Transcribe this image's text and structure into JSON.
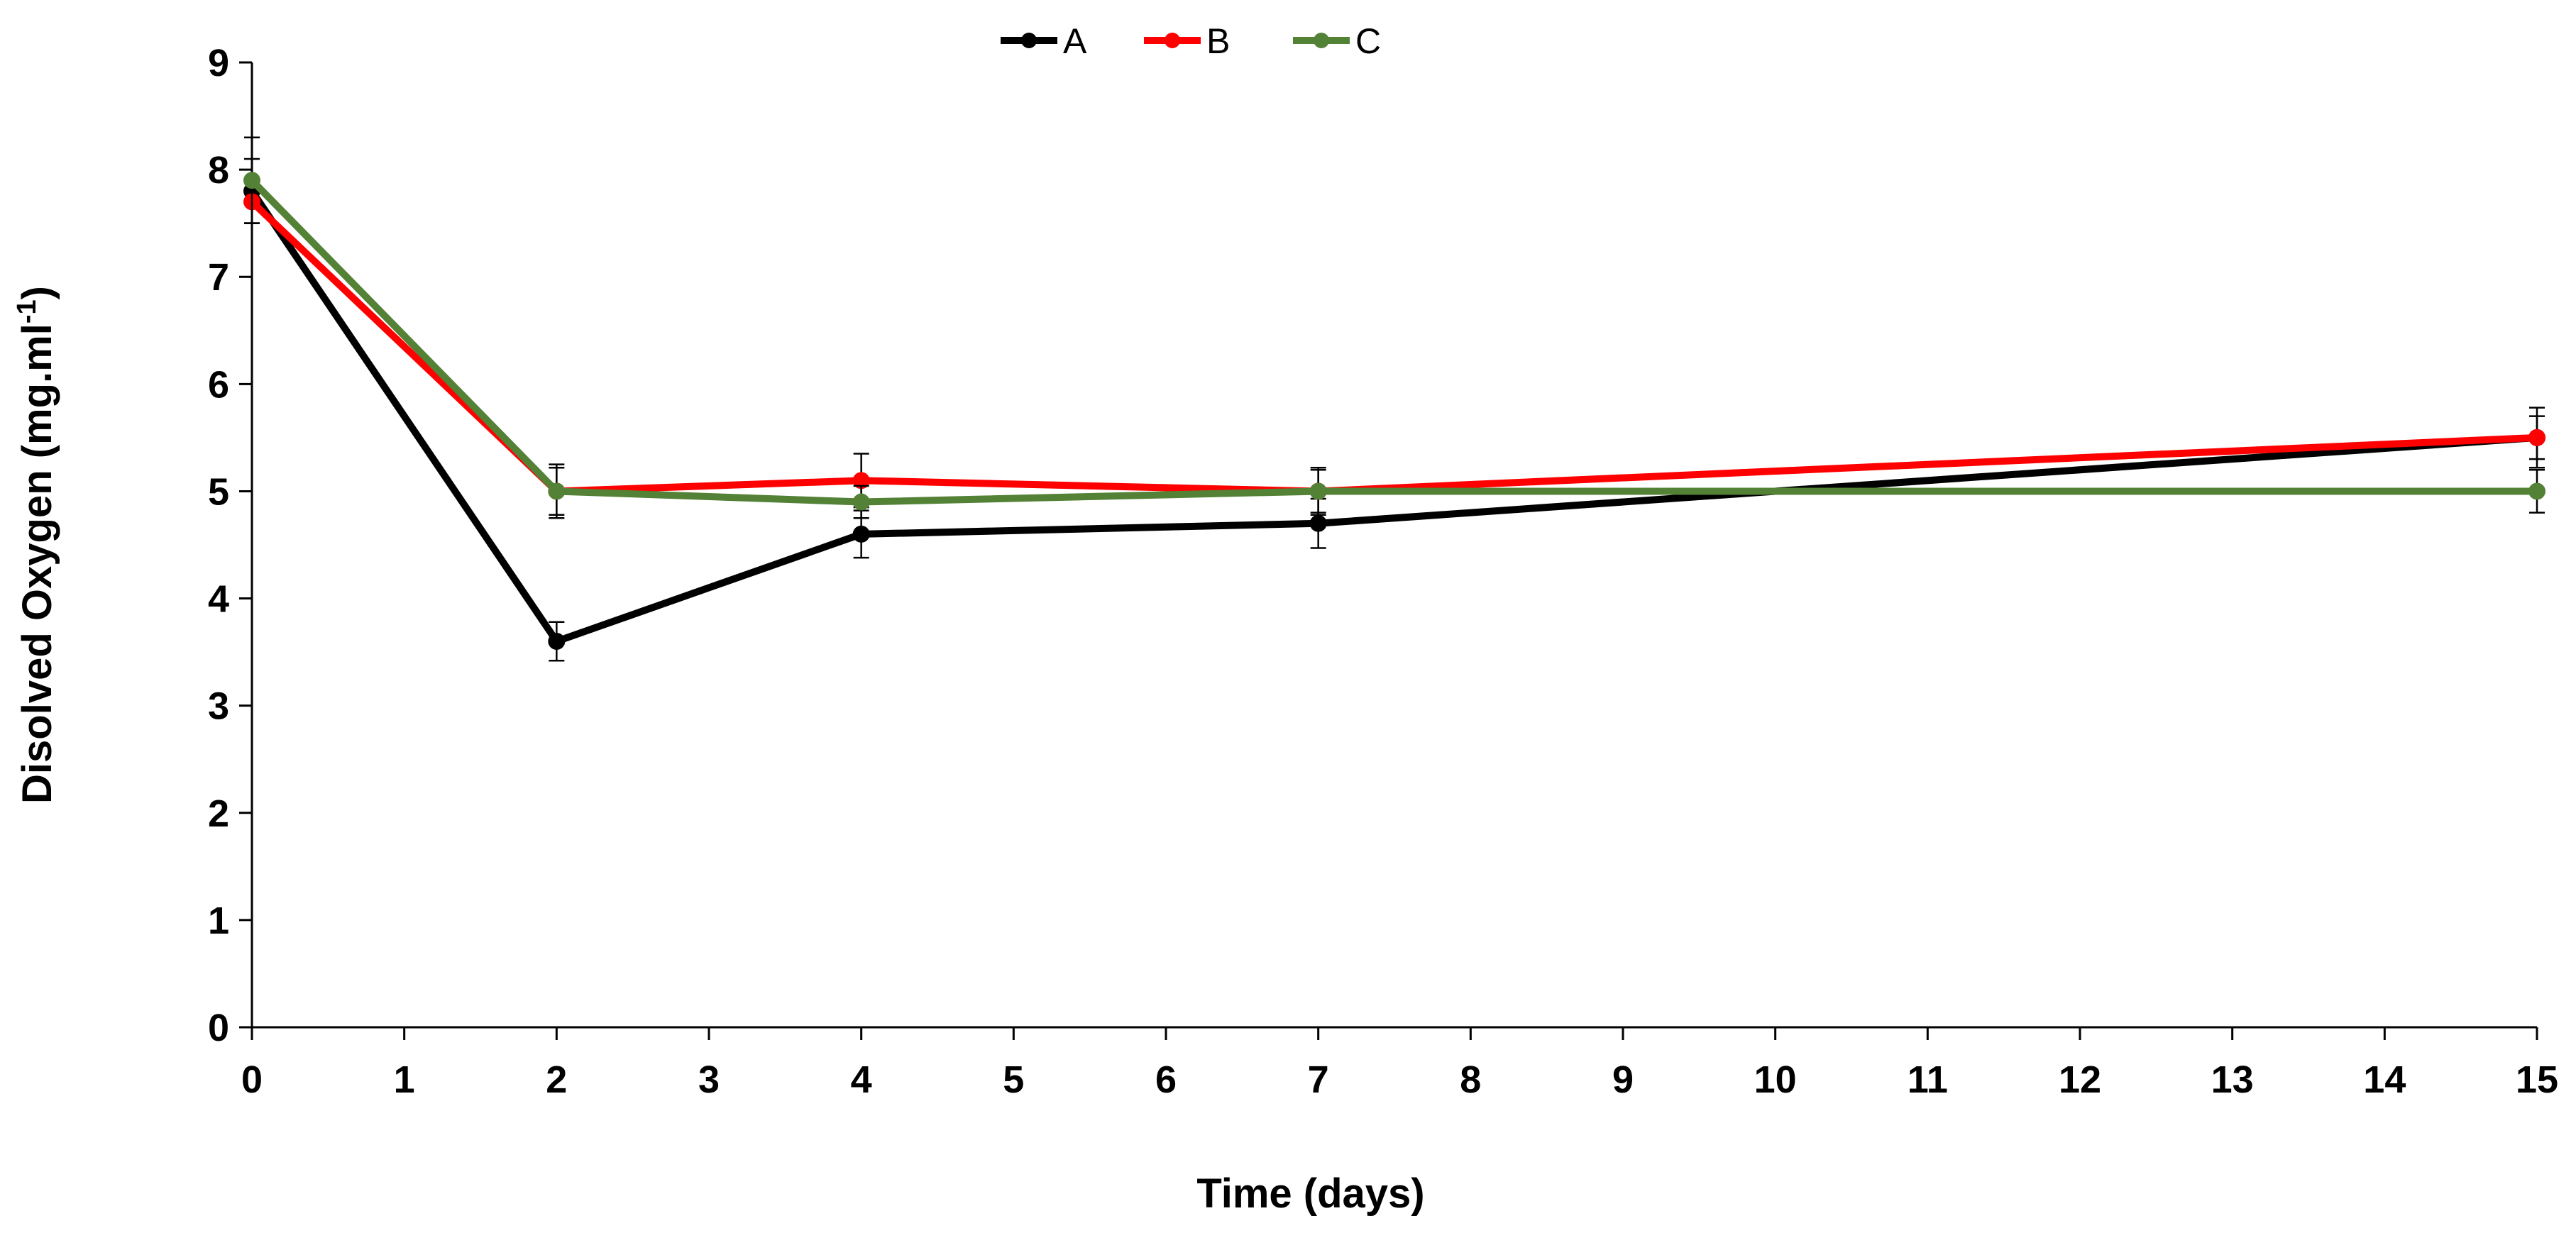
{
  "chart_data": {
    "type": "line",
    "title": "",
    "xlabel": "Time (days)",
    "ylabel_main": "Disolved Oxygen (mg.ml",
    "ylabel_sup": "-1",
    "ylabel_close": ")",
    "xlim": [
      0,
      15
    ],
    "ylim": [
      0,
      9
    ],
    "x_ticks": [
      0,
      1,
      2,
      3,
      4,
      5,
      6,
      7,
      8,
      9,
      10,
      11,
      12,
      13,
      14,
      15
    ],
    "y_ticks": [
      0,
      1,
      2,
      3,
      4,
      5,
      6,
      7,
      8,
      9
    ],
    "grid": false,
    "legend_position": "top-center",
    "series": [
      {
        "name": "A",
        "color": "#000000",
        "x": [
          0,
          2,
          4,
          7,
          15
        ],
        "values": [
          7.8,
          3.6,
          4.6,
          4.7,
          5.5
        ],
        "errors": [
          0.3,
          0.18,
          0.22,
          0.23,
          0.2
        ]
      },
      {
        "name": "B",
        "color": "#ff0000",
        "x": [
          0,
          2,
          4,
          7,
          15
        ],
        "values": [
          7.7,
          5.0,
          5.1,
          5.0,
          5.5
        ],
        "errors": [
          0.2,
          0.25,
          0.25,
          0.22,
          0.28
        ]
      },
      {
        "name": "C",
        "color": "#538135",
        "x": [
          0,
          2,
          4,
          7,
          15
        ],
        "values": [
          7.9,
          5.0,
          4.9,
          5.0,
          5.0
        ],
        "errors": [
          0.4,
          0.22,
          0.15,
          0.2,
          0.2
        ]
      }
    ]
  }
}
